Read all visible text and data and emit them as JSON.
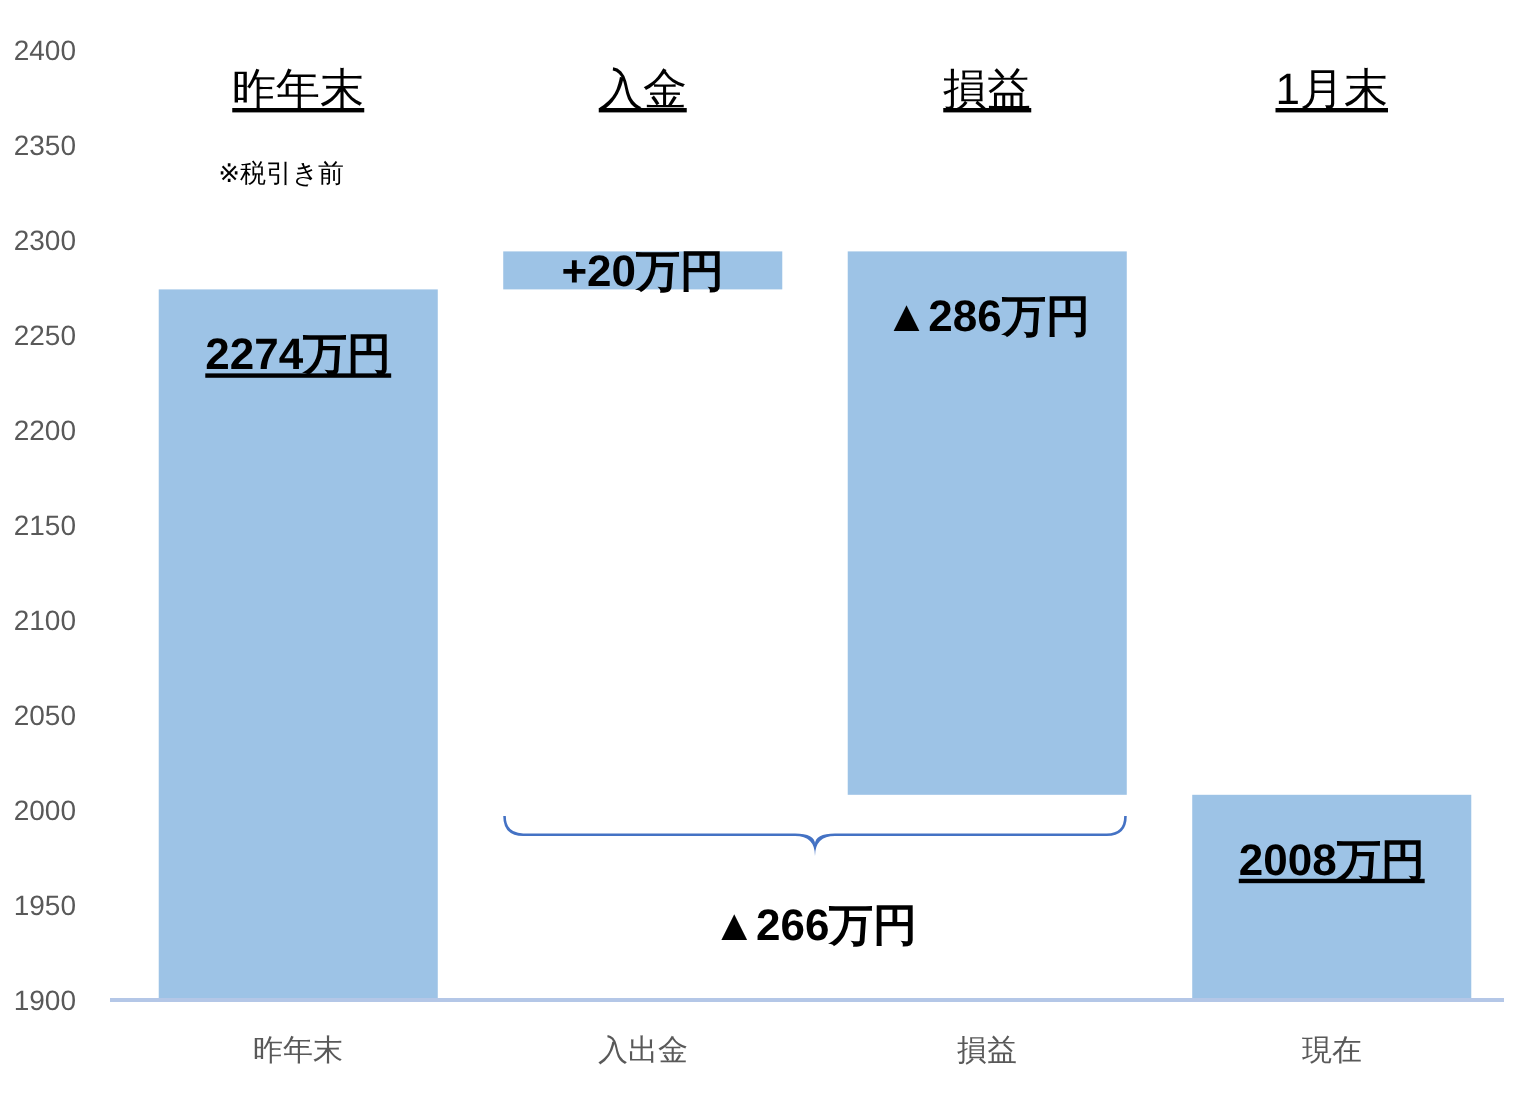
{
  "chart_data": {
    "type": "bar",
    "categories": [
      "昨年末",
      "入出金",
      "損益",
      "現在"
    ],
    "values": [
      2274,
      20,
      -286,
      2008
    ],
    "base": [
      0,
      2274,
      2294,
      0
    ],
    "value_labels": [
      "2274万円",
      "+20万円",
      "▲286万円",
      "2008万円"
    ],
    "color": "#9dc3e6",
    "ylim": [
      1900,
      2400
    ],
    "yticks": [
      1900,
      1950,
      2000,
      2050,
      2100,
      2150,
      2200,
      2250,
      2300,
      2350,
      2400
    ],
    "grid": false,
    "annotations": [
      "昨年末",
      "入金",
      "損益",
      "1月末",
      "※税引き前",
      "▲266万円"
    ]
  }
}
